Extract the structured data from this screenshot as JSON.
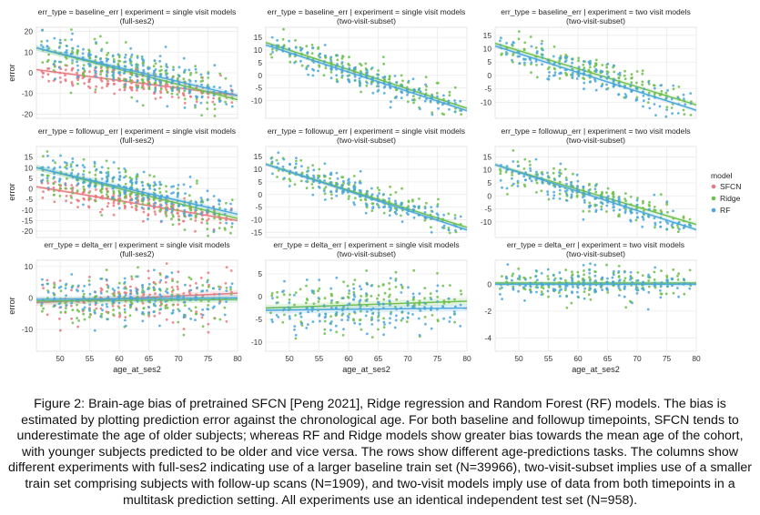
{
  "legend": {
    "title": "model",
    "entries": [
      {
        "label": "SFCN",
        "color": "#e8797f"
      },
      {
        "label": "Ridge",
        "color": "#6cbf4a"
      },
      {
        "label": "RF",
        "color": "#4aa7db"
      }
    ]
  },
  "caption": "Figure 2: Brain-age bias of pretrained SFCN [Peng 2021], Ridge regression and Random Forest (RF) models. The bias is estimated by plotting prediction error against the chronological age. For both baseline and followup timepoints, SFCN tends to underestimate the age of older subjects; whereas RF and Ridge models show greater bias towards the mean age of the cohort, with younger subjects predicted to be older and vice versa. The rows show different age-predictions tasks. The columns show different experiments with full-ses2 indicating use of a larger baseline train set (N=39966), two-visit-subset implies use of a smaller train set comprising subjects with follow-up scans (N=1909), and two-visit models imply use of data from both timepoints in a multitask prediction setting. All experiments use an identical independent test set (N=958).",
  "chart_data": {
    "type": "scatter",
    "x_label": "age_at_ses2",
    "y_label": "error",
    "x_range": [
      46,
      80
    ],
    "x_ticks": [
      50,
      55,
      60,
      65,
      70,
      75,
      80
    ],
    "grid": true,
    "legend_position": "right",
    "panels": [
      {
        "row": 0,
        "col": 0,
        "title1": "err_type = baseline_err | experiment = single visit models",
        "title2": "(full-ses2)",
        "ylim": [
          -22,
          22
        ],
        "yticks": [
          -20,
          -10,
          0,
          10,
          20
        ],
        "series": [
          {
            "name": "SFCN",
            "fit": [
              [
                46,
                1.5
              ],
              [
                80,
                -11
              ]
            ],
            "spread": 3
          },
          {
            "name": "Ridge",
            "fit": [
              [
                46,
                12
              ],
              [
                80,
                -13
              ]
            ],
            "spread": 5
          },
          {
            "name": "RF",
            "fit": [
              [
                46,
                12
              ],
              [
                80,
                -11
              ]
            ],
            "spread": 5
          }
        ]
      },
      {
        "row": 0,
        "col": 1,
        "title1": "err_type = baseline_err | experiment = single visit models",
        "title2": "(two-visit-subset)",
        "ylim": [
          -17,
          19
        ],
        "yticks": [
          -10,
          -5,
          0,
          5,
          10,
          15
        ],
        "series": [
          {
            "name": "Ridge",
            "fit": [
              [
                46,
                13
              ],
              [
                80,
                -13
              ]
            ],
            "spread": 3
          },
          {
            "name": "RF",
            "fit": [
              [
                46,
                12
              ],
              [
                80,
                -14
              ]
            ],
            "spread": 3
          }
        ]
      },
      {
        "row": 0,
        "col": 2,
        "title1": "err_type = baseline_err | experiment = two visit models",
        "title2": "(two-visit-subset)",
        "ylim": [
          -16,
          18
        ],
        "yticks": [
          -10,
          -5,
          0,
          5,
          10,
          15
        ],
        "series": [
          {
            "name": "Ridge",
            "fit": [
              [
                46,
                12
              ],
              [
                80,
                -11
              ]
            ],
            "spread": 3
          },
          {
            "name": "RF",
            "fit": [
              [
                46,
                11
              ],
              [
                80,
                -13
              ]
            ],
            "spread": 3
          }
        ]
      },
      {
        "row": 1,
        "col": 0,
        "title1": "err_type = followup_err | experiment = single visit models",
        "title2": "(full-ses2)",
        "ylim": [
          -23,
          20
        ],
        "yticks": [
          -20,
          -15,
          -10,
          -5,
          0,
          5,
          10,
          15
        ],
        "series": [
          {
            "name": "SFCN",
            "fit": [
              [
                46,
                1
              ],
              [
                80,
                -15
              ]
            ],
            "spread": 3
          },
          {
            "name": "Ridge",
            "fit": [
              [
                46,
                10
              ],
              [
                80,
                -14
              ]
            ],
            "spread": 5
          },
          {
            "name": "RF",
            "fit": [
              [
                46,
                10
              ],
              [
                80,
                -12
              ]
            ],
            "spread": 5
          }
        ]
      },
      {
        "row": 1,
        "col": 1,
        "title1": "err_type = followup_err | experiment = single visit models",
        "title2": "(two-visit-subset)",
        "ylim": [
          -17,
          19
        ],
        "yticks": [
          -15,
          -10,
          -5,
          0,
          5,
          10,
          15
        ],
        "series": [
          {
            "name": "Ridge",
            "fit": [
              [
                46,
                12
              ],
              [
                80,
                -13
              ]
            ],
            "spread": 3
          },
          {
            "name": "RF",
            "fit": [
              [
                46,
                12
              ],
              [
                80,
                -14
              ]
            ],
            "spread": 3
          }
        ]
      },
      {
        "row": 1,
        "col": 2,
        "title1": "err_type = followup_err | experiment = two visit models",
        "title2": "(two-visit-subset)",
        "ylim": [
          -16,
          19
        ],
        "yticks": [
          -10,
          -5,
          0,
          5,
          10,
          15
        ],
        "series": [
          {
            "name": "Ridge",
            "fit": [
              [
                46,
                12
              ],
              [
                80,
                -11
              ]
            ],
            "spread": 3
          },
          {
            "name": "RF",
            "fit": [
              [
                46,
                12
              ],
              [
                80,
                -13
              ]
            ],
            "spread": 3
          }
        ]
      },
      {
        "row": 2,
        "col": 0,
        "title1": "err_type = delta_err | experiment = single visit models",
        "title2": "(full-ses2)",
        "ylim": [
          -17,
          12
        ],
        "yticks": [
          -10,
          0,
          10
        ],
        "series": [
          {
            "name": "SFCN",
            "fit": [
              [
                46,
                -1.5
              ],
              [
                80,
                1.5
              ]
            ],
            "spread": 4
          },
          {
            "name": "Ridge",
            "fit": [
              [
                46,
                -1
              ],
              [
                80,
                -0.5
              ]
            ],
            "spread": 4
          },
          {
            "name": "RF",
            "fit": [
              [
                46,
                -0.5
              ],
              [
                80,
                0
              ]
            ],
            "spread": 4
          }
        ]
      },
      {
        "row": 2,
        "col": 1,
        "title1": "err_type = delta_err | experiment = single visit models",
        "title2": "(two-visit-subset)",
        "ylim": [
          -12,
          8
        ],
        "yticks": [
          -10,
          -5,
          0,
          5
        ],
        "series": [
          {
            "name": "Ridge",
            "fit": [
              [
                46,
                -2.5
              ],
              [
                80,
                -1
              ]
            ],
            "spread": 3
          },
          {
            "name": "RF",
            "fit": [
              [
                46,
                -3
              ],
              [
                80,
                -2.5
              ]
            ],
            "spread": 3
          }
        ]
      },
      {
        "row": 2,
        "col": 2,
        "title1": "err_type = delta_err | experiment = two visit models",
        "title2": "(two-visit-subset)",
        "ylim": [
          -5,
          1.8
        ],
        "yticks": [
          -4,
          -2,
          0
        ],
        "series": [
          {
            "name": "Ridge",
            "fit": [
              [
                46,
                0.1
              ],
              [
                80,
                0.1
              ]
            ],
            "spread": 0.6
          },
          {
            "name": "RF",
            "fit": [
              [
                46,
                0
              ],
              [
                80,
                0
              ]
            ],
            "spread": 0.6
          }
        ]
      }
    ]
  }
}
